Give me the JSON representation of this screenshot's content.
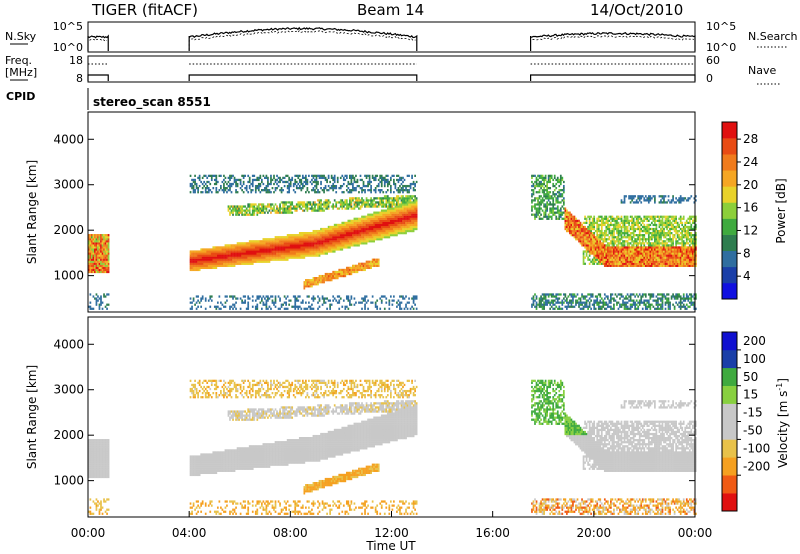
{
  "header": {
    "station": "TIGER (fitACF)",
    "beam": "Beam 14",
    "date": "14/Oct/2010"
  },
  "status_panels": {
    "nsky_label": "N.Sky",
    "nsearch_label": "N.Search",
    "nsky_ticks": [
      "10^5",
      "10^0"
    ],
    "nsearch_ticks": [
      "10^5",
      "10^0"
    ],
    "freq_label": "Freq.",
    "freq_unit": "[MHz]",
    "freq_ticks": [
      "18",
      "8"
    ],
    "nave_label": "Nave",
    "nave_ticks": [
      "60",
      "0"
    ],
    "cpid_label": "CPID",
    "cpid_value": "stereo_scan 8551"
  },
  "colors": {
    "power_scale": [
      "#1010e0",
      "#1a3fa8",
      "#2f6ea0",
      "#2e7d4f",
      "#3faa3f",
      "#8ccf3a",
      "#e8d22a",
      "#f5a623",
      "#f07b1c",
      "#e84b14",
      "#e01010"
    ],
    "velocity_scale": [
      "#e01010",
      "#f05a14",
      "#f5a020",
      "#e8c24a",
      "#c8c8c8",
      "#c8c8c8",
      "#88d040",
      "#3faa3f",
      "#1a3fa8",
      "#1010d0"
    ]
  },
  "chart_data": [
    {
      "type": "heatmap",
      "name": "power",
      "xlabel": "",
      "ylabel": "Slant Range [km]",
      "xlim": [
        0,
        24
      ],
      "ylim": [
        200,
        4600
      ],
      "yticks": [
        "1000",
        "2000",
        "3000",
        "4000"
      ],
      "colorbar": {
        "label": "Power [dB]",
        "ticks": [
          "4",
          "8",
          "12",
          "16",
          "20",
          "24",
          "28"
        ],
        "range": [
          0,
          31
        ]
      },
      "data_intervals_UT": [
        [
          0,
          0.8
        ],
        [
          4,
          13
        ],
        [
          17.5,
          24
        ]
      ]
    },
    {
      "type": "heatmap",
      "name": "velocity",
      "xlabel": "Time UT",
      "ylabel": "Slant Range [km]",
      "xlim": [
        0,
        24
      ],
      "ylim": [
        200,
        4600
      ],
      "xticks": [
        "00:00",
        "04:00",
        "08:00",
        "12:00",
        "16:00",
        "20:00",
        "00:00"
      ],
      "yticks": [
        "1000",
        "2000",
        "3000",
        "4000"
      ],
      "colorbar": {
        "label": "Velocity [m s",
        "label_sup": "-1",
        "label_end": "]",
        "ticks": [
          "-200",
          "-100",
          "-50",
          "-15",
          "15",
          "50",
          "100",
          "200"
        ]
      },
      "data_intervals_UT": [
        [
          0,
          0.8
        ],
        [
          4,
          13
        ],
        [
          17.5,
          24
        ]
      ]
    }
  ]
}
